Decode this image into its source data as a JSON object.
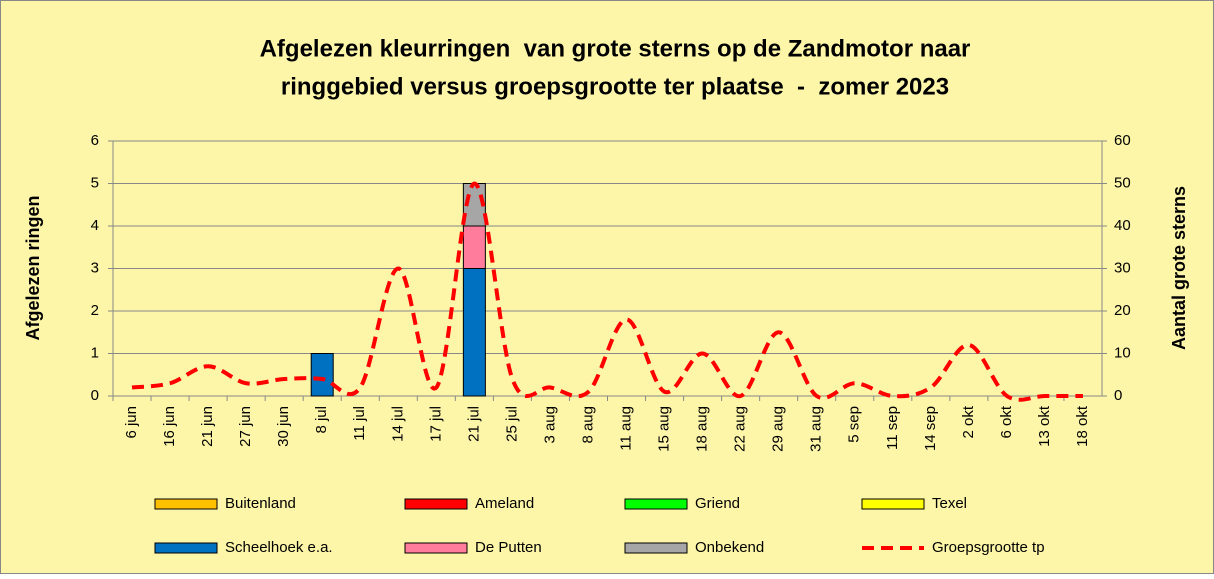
{
  "chart_data": {
    "type": "bar",
    "stacked": true,
    "title": [
      "Afgelezen kleurringen  van grote sterns op de Zandmotor naar",
      "ringgebied versus groepsgrootte ter plaatse  -  zomer 2023"
    ],
    "ylabel": "Afgelezen ringen",
    "y2label": "Aantal grote sterns",
    "categories": [
      "6 jun",
      "16 jun",
      "21 jun",
      "27 jun",
      "30 jun",
      "8 jul",
      "11 jul",
      "14 jul",
      "17 jul",
      "21 jul",
      "25 jul",
      "3 aug",
      "8 aug",
      "11 aug",
      "15 aug",
      "18 aug",
      "22 aug",
      "29 aug",
      "31 aug",
      "5 sep",
      "11 sep",
      "14 sep",
      "2 okt",
      "6 okt",
      "13 okt",
      "18 okt"
    ],
    "series": [
      {
        "name": "Buitenland",
        "color": "#FFC000",
        "values": [
          0,
          0,
          0,
          0,
          0,
          0,
          0,
          0,
          0,
          0,
          0,
          0,
          0,
          0,
          0,
          0,
          0,
          0,
          0,
          0,
          0,
          0,
          0,
          0,
          0,
          0
        ]
      },
      {
        "name": "Ameland",
        "color": "#FF0000",
        "values": [
          0,
          0,
          0,
          0,
          0,
          0,
          0,
          0,
          0,
          0,
          0,
          0,
          0,
          0,
          0,
          0,
          0,
          0,
          0,
          0,
          0,
          0,
          0,
          0,
          0,
          0
        ]
      },
      {
        "name": "Griend",
        "color": "#00FF00",
        "values": [
          0,
          0,
          0,
          0,
          0,
          0,
          0,
          0,
          0,
          0,
          0,
          0,
          0,
          0,
          0,
          0,
          0,
          0,
          0,
          0,
          0,
          0,
          0,
          0,
          0,
          0
        ]
      },
      {
        "name": "Texel",
        "color": "#FFFF00",
        "values": [
          0,
          0,
          0,
          0,
          0,
          0,
          0,
          0,
          0,
          0,
          0,
          0,
          0,
          0,
          0,
          0,
          0,
          0,
          0,
          0,
          0,
          0,
          0,
          0,
          0,
          0
        ]
      },
      {
        "name": "Scheelhoek e.a.",
        "color": "#0070C0",
        "values": [
          0,
          0,
          0,
          0,
          0,
          1,
          0,
          0,
          0,
          3,
          0,
          0,
          0,
          0,
          0,
          0,
          0,
          0,
          0,
          0,
          0,
          0,
          0,
          0,
          0,
          0
        ]
      },
      {
        "name": "De Putten",
        "color": "#FF7C9C",
        "values": [
          0,
          0,
          0,
          0,
          0,
          0,
          0,
          0,
          0,
          1,
          0,
          0,
          0,
          0,
          0,
          0,
          0,
          0,
          0,
          0,
          0,
          0,
          0,
          0,
          0,
          0
        ]
      },
      {
        "name": "Onbekend",
        "color": "#A6A6A6",
        "values": [
          0,
          0,
          0,
          0,
          0,
          0,
          0,
          0,
          0,
          1,
          0,
          0,
          0,
          0,
          0,
          0,
          0,
          0,
          0,
          0,
          0,
          0,
          0,
          0,
          0,
          0
        ]
      },
      {
        "name": "Groepsgrootte tp",
        "color": "#FF0000",
        "type": "line",
        "dashed": true,
        "axis": "y2",
        "values": [
          2,
          3,
          7,
          3,
          4,
          4,
          2,
          30,
          2,
          50,
          4,
          2,
          1,
          18,
          1,
          10,
          0,
          15,
          0,
          3,
          0,
          2,
          12,
          0,
          0,
          0
        ]
      }
    ],
    "ylim": [
      0,
      6
    ],
    "yticks": [
      0,
      1,
      2,
      3,
      4,
      5,
      6
    ],
    "y2lim": [
      0,
      60
    ],
    "y2ticks": [
      0,
      10,
      20,
      30,
      40,
      50,
      60
    ],
    "grid": true
  }
}
